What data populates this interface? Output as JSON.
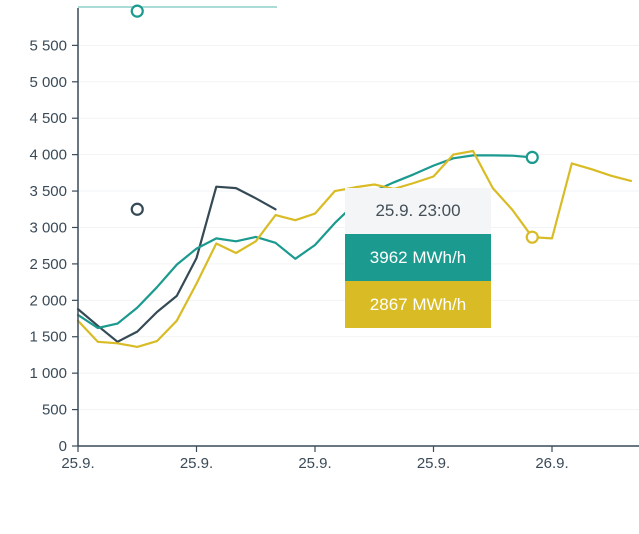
{
  "chart_data": {
    "type": "line",
    "ylim": [
      0,
      5800
    ],
    "y_ticks": [
      0,
      500,
      1000,
      1500,
      2000,
      2500,
      3000,
      3500,
      4000,
      4500,
      5000,
      5500
    ],
    "y_tick_labels": [
      "0",
      "500",
      "1 000",
      "1 500",
      "2 000",
      "2 500",
      "3 000",
      "3 500",
      "4 000",
      "4 500",
      "5 000",
      "5 500"
    ],
    "x_tick_labels": [
      "25.9.",
      "25.9.",
      "25.9.",
      "25.9.",
      "26.9."
    ],
    "x_tick_hours": [
      0,
      6,
      12,
      18,
      24
    ],
    "grid": true,
    "series": [
      {
        "color": "#354a55",
        "x": [
          0,
          1,
          2,
          3,
          4,
          5,
          6,
          7,
          8,
          9,
          10
        ],
        "values": [
          1880,
          1650,
          1430,
          1570,
          1840,
          2060,
          2580,
          3560,
          3540,
          3400,
          3250
        ]
      },
      {
        "color": "#1b9a8f",
        "x": [
          0,
          1,
          2,
          3,
          4,
          5,
          6,
          7,
          8,
          9,
          10,
          11,
          12,
          13,
          14,
          15,
          16,
          17,
          18,
          19,
          20,
          21,
          22,
          23
        ],
        "values": [
          1800,
          1620,
          1680,
          1900,
          2180,
          2490,
          2710,
          2850,
          2810,
          2870,
          2790,
          2570,
          2760,
          3060,
          3320,
          3500,
          3620,
          3730,
          3850,
          3950,
          3990,
          3990,
          3985,
          3962
        ]
      },
      {
        "color": "#d9bc25",
        "x": [
          0,
          1,
          2,
          3,
          4,
          5,
          6,
          7,
          8,
          9,
          10,
          11,
          12,
          13,
          14,
          15,
          16,
          17,
          18,
          19,
          20,
          21,
          22,
          23,
          24,
          25,
          26,
          27,
          28
        ],
        "values": [
          1720,
          1430,
          1410,
          1360,
          1440,
          1720,
          2230,
          2780,
          2650,
          2810,
          3170,
          3100,
          3190,
          3500,
          3550,
          3590,
          3530,
          3610,
          3700,
          4000,
          4050,
          3540,
          3240,
          2867,
          2850,
          3880,
          3800,
          3710,
          3640
        ]
      }
    ],
    "markers": [
      {
        "color": "#354a55",
        "x": 3,
        "value": 3250
      },
      {
        "color": "#1b9a8f",
        "x": 23,
        "value": 3962
      },
      {
        "color": "#d9bc25",
        "x": 23,
        "value": 2867
      },
      {
        "color": "#1b9a8f",
        "x": 3,
        "value": 5970
      }
    ]
  },
  "tooltip": {
    "header": "25.9. 23:00",
    "rows": [
      {
        "text": "3962 MWh/h",
        "color": "#1b9a8f"
      },
      {
        "text": "2867 MWh/h",
        "color": "#d9bc25"
      }
    ]
  }
}
